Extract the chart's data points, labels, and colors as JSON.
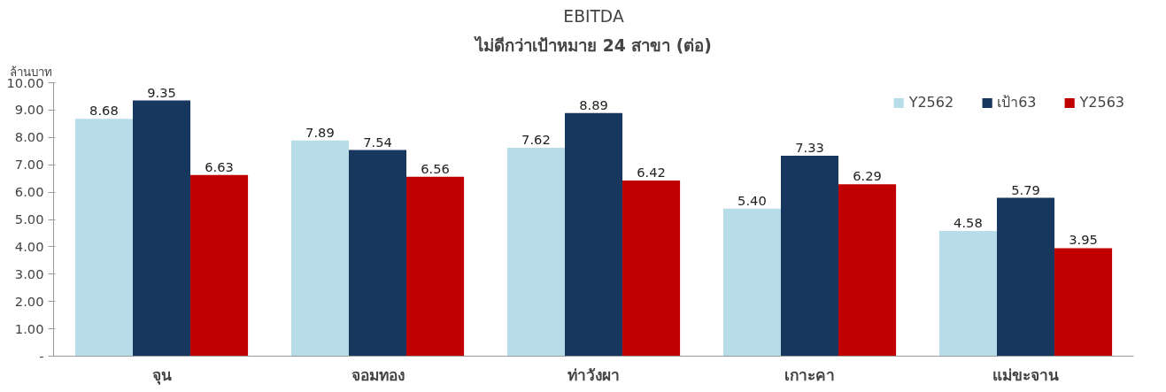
{
  "chart_data": {
    "type": "bar",
    "title": "EBITDA",
    "subtitle": "ไม่ดีกว่าเป้าหมาย 24 สาขา (ต่อ)",
    "ylabel": "ล้านบาท",
    "categories": [
      "จุน",
      "จอมทอง",
      "ท่าวังผา",
      "เกาะคา",
      "แม่ขะจาน"
    ],
    "series": [
      {
        "name": "Y2562",
        "color": "#b7dde8",
        "values": [
          8.68,
          7.89,
          7.62,
          5.4,
          4.58
        ],
        "value_labels": [
          "8.68",
          "7.89",
          "7.62",
          "5.40",
          "4.58"
        ]
      },
      {
        "name": "เป้า63",
        "color": "#17375e",
        "values": [
          9.35,
          7.54,
          8.89,
          7.33,
          5.79
        ],
        "value_labels": [
          "9.35",
          "7.54",
          "8.89",
          "7.33",
          "5.79"
        ]
      },
      {
        "name": "Y2563",
        "color": "#c00000",
        "values": [
          6.63,
          6.56,
          6.42,
          6.29,
          3.95
        ],
        "value_labels": [
          "6.63",
          "6.56",
          "6.42",
          "6.29",
          "3.95"
        ]
      }
    ],
    "ylim": [
      0,
      10
    ],
    "yticks": [
      {
        "value": 0,
        "label": "-"
      },
      {
        "value": 1,
        "label": "1.00"
      },
      {
        "value": 2,
        "label": "2.00"
      },
      {
        "value": 3,
        "label": "3.00"
      },
      {
        "value": 4,
        "label": "4.00"
      },
      {
        "value": 5,
        "label": "5.00"
      },
      {
        "value": 6,
        "label": "6.00"
      },
      {
        "value": 7,
        "label": "7.00"
      },
      {
        "value": 8,
        "label": "8.00"
      },
      {
        "value": 9,
        "label": "9.00"
      },
      {
        "value": 10,
        "label": "10.00"
      }
    ],
    "grid": false,
    "legend": "top right"
  }
}
